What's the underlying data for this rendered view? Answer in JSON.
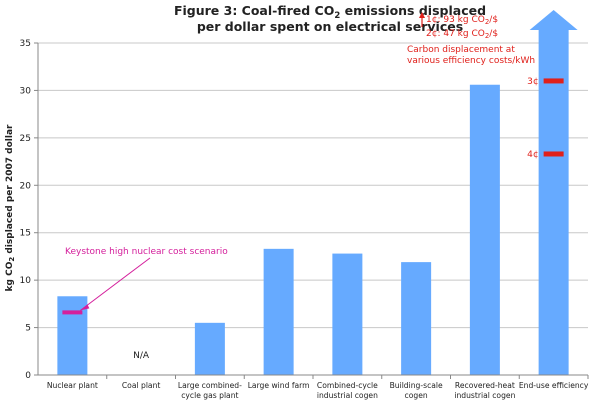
{
  "chart_data": {
    "type": "bar",
    "title_line1_pre": "Figure 3: Coal-fired CO",
    "title_line1_sub": "2",
    "title_line1_post": " emissions displaced",
    "title_line2": "per dollar spent on electrical services",
    "ylabel_pre": "kg CO",
    "ylabel_sub": "2",
    "ylabel_post": " displaced per 2007 dollar",
    "ylim": [
      0,
      35
    ],
    "yticks": [
      "0",
      "5",
      "10",
      "15",
      "20",
      "25",
      "30",
      "35"
    ],
    "grid": true,
    "categories": [
      [
        "Nuclear plant"
      ],
      [
        "Coal plant"
      ],
      [
        "Large combined-",
        "cycle gas plant"
      ],
      [
        "Large wind farm"
      ],
      [
        "Combined-cycle",
        "industrial cogen"
      ],
      [
        "Building-scale",
        "cogen"
      ],
      [
        "Recovered-heat",
        "industrial cogen"
      ],
      [
        "End-use efficiency"
      ]
    ],
    "values": [
      8.3,
      null,
      5.5,
      13.3,
      12.8,
      11.9,
      30.6,
      35
    ],
    "na_label": "N/A",
    "bar_color": "#66aaff",
    "marker_color_red": "#e0201b",
    "marker_color_pink": "#d4209c",
    "nuclear_marker": {
      "value": 6.6,
      "label": "Keystone high nuclear cost scenario"
    },
    "efficiency_markers": [
      {
        "label": "3¢",
        "value": 31.0
      },
      {
        "label": "4¢",
        "value": 23.3
      }
    ],
    "efficiency_annotation": [
      "Carbon displacement at",
      "various efficiency costs/kWh"
    ],
    "offscale_labels": [
      {
        "pre": "1¢: 93 kg CO",
        "sub": "2",
        "post": "/$"
      },
      {
        "pre": "2¢: 47 kg CO",
        "sub": "2",
        "post": "/$"
      }
    ]
  }
}
